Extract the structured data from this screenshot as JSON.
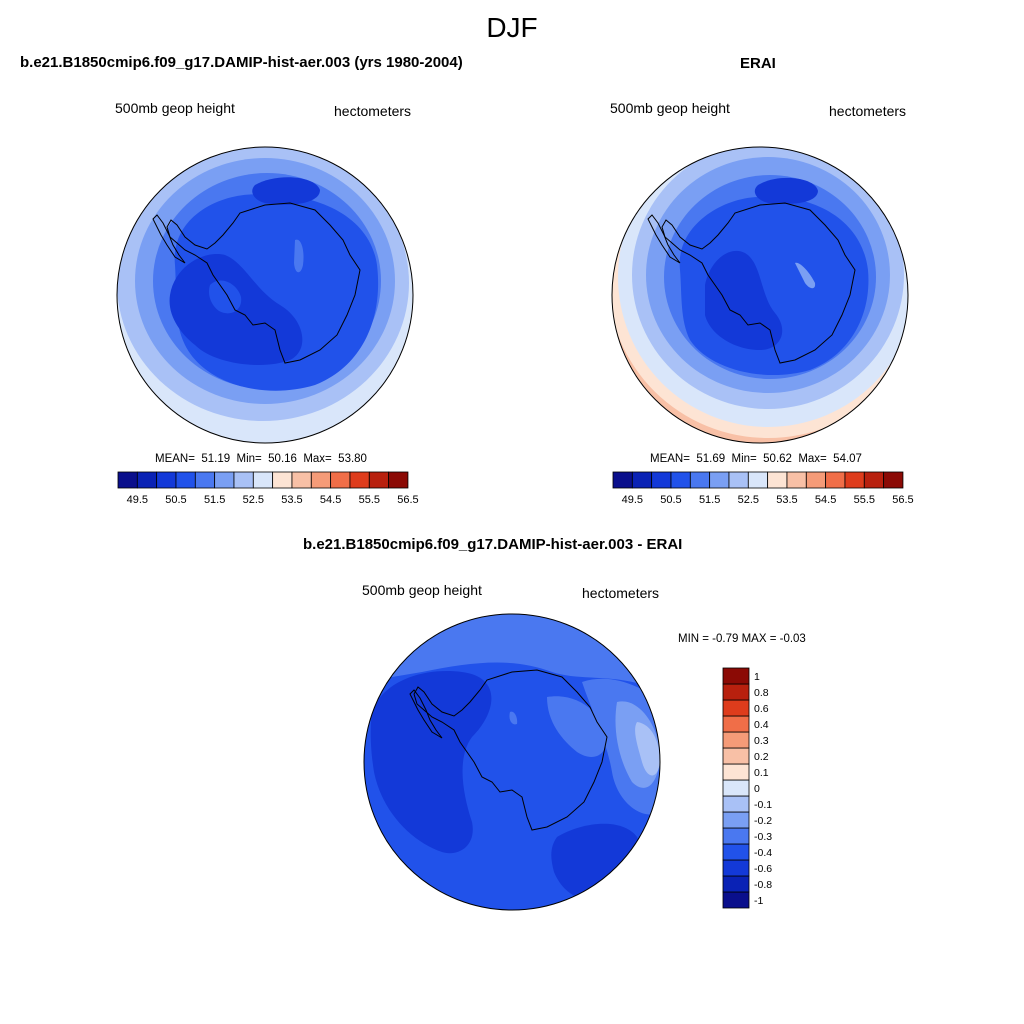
{
  "figure": {
    "title": "DJF"
  },
  "panels": {
    "model": {
      "title": "b.e21.B1850cmip6.f09_g17.DAMIP-hist-aer.003 (yrs 1980-2004)",
      "left_label": "500mb geop height",
      "right_label": "hectometers",
      "stats": {
        "mean_label": "MEAN=",
        "mean": "51.19",
        "min_label": "Min=",
        "min": "50.16",
        "max_label": "Max=",
        "max": "53.80"
      }
    },
    "obs": {
      "title": "ERAI",
      "left_label": "500mb geop height",
      "right_label": "hectometers",
      "stats": {
        "mean_label": "MEAN=",
        "mean": "51.69",
        "min_label": "Min=",
        "min": "50.62",
        "max_label": "Max=",
        "max": "54.07"
      }
    },
    "diff": {
      "title": "b.e21.B1850cmip6.f09_g17.DAMIP-hist-aer.003 - ERAI",
      "left_label": "500mb geop height",
      "right_label": "hectometers",
      "stats_line": "MIN =  -0.79 MAX =  -0.03"
    }
  },
  "colorbars": {
    "absolute": {
      "colors": [
        "#0a0f8c",
        "#0a22b5",
        "#1339d8",
        "#2152ea",
        "#4a78f0",
        "#7a9ff3",
        "#a9c1f6",
        "#d9e6fa",
        "#fde4d4",
        "#f8c0a6",
        "#f59b78",
        "#f06e48",
        "#de3c1c",
        "#b8200e",
        "#8b0a05"
      ],
      "ticks": [
        "49.5",
        "50.5",
        "51.5",
        "52.5",
        "53.5",
        "54.5",
        "55.5",
        "56.5"
      ]
    },
    "difference": {
      "colors": [
        "#0a0f8c",
        "#0a22b5",
        "#1339d8",
        "#2152ea",
        "#4a78f0",
        "#7a9ff3",
        "#a9c1f6",
        "#d9e6fa",
        "#fde4d4",
        "#f8c0a6",
        "#f59b78",
        "#f06e48",
        "#de3c1c",
        "#b8200e",
        "#8b0a05"
      ],
      "ticks": [
        "-1",
        "-0.8",
        "-0.6",
        "-0.4",
        "-0.3",
        "-0.2",
        "-0.1",
        "0",
        "0.1",
        "0.2",
        "0.3",
        "0.4",
        "0.6",
        "0.8",
        "1"
      ]
    }
  }
}
